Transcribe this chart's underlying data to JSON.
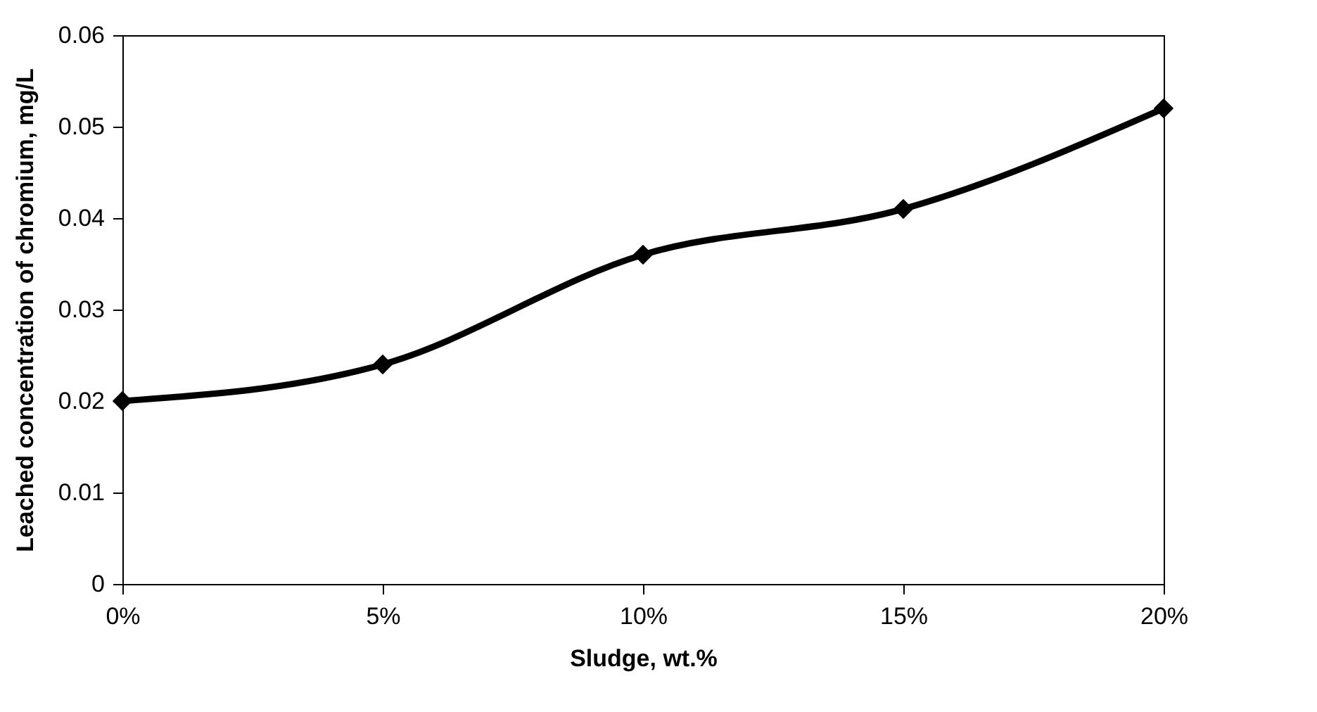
{
  "chart_data": {
    "type": "line",
    "xlabel": "Sludge, wt.%",
    "ylabel": "Leached concentration of chromium, mg/L",
    "categories": [
      "0%",
      "5%",
      "10%",
      "15%",
      "20%"
    ],
    "series": [
      {
        "color": "#000000",
        "values": [
          0.02,
          0.024,
          0.036,
          0.041,
          0.052
        ]
      }
    ],
    "ylim": [
      0,
      0.06
    ],
    "yticks": [
      0,
      0.01,
      0.02,
      0.03,
      0.04,
      0.05,
      0.06
    ],
    "grid": false,
    "legend": false,
    "marker": "diamond",
    "line_style": "solid"
  }
}
